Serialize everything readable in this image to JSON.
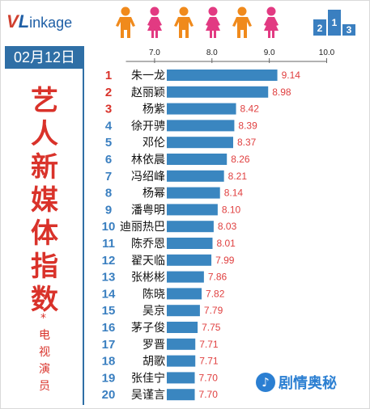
{
  "header": {
    "logo_v": "V",
    "logo_l": "L",
    "logo_rest": "inkage",
    "date": "02月12日",
    "podium_digits": [
      "2",
      "1",
      "3"
    ]
  },
  "left_panel": {
    "title_chars": [
      "艺",
      "人",
      "新",
      "媒",
      "体",
      "指",
      "数"
    ],
    "star": "*",
    "subtitle_chars": [
      "电",
      "视",
      "演",
      "员"
    ]
  },
  "watermark": {
    "icon_glyph": "♪",
    "text": "剧情奥秘"
  },
  "colors": {
    "bar": "#3a86c0",
    "value_text": "#e04040",
    "rank_top3": "#d9322a",
    "rank_other": "#3a7fc0",
    "person_orange": "#f08a1c",
    "person_pink": "#e23a82"
  },
  "chart_data": {
    "type": "bar",
    "orientation": "horizontal",
    "xlim": [
      6.5,
      10.0
    ],
    "x_ticks": [
      "7.0",
      "8.0",
      "9.0",
      "10.0"
    ],
    "x_tick_values": [
      7.0,
      8.0,
      9.0,
      10.0
    ],
    "ranks": [
      "1",
      "2",
      "3",
      "4",
      "5",
      "6",
      "7",
      "8",
      "9",
      "10",
      "11",
      "12",
      "13",
      "14",
      "15",
      "16",
      "17",
      "18",
      "19",
      "20"
    ],
    "categories": [
      "朱一龙",
      "赵丽颖",
      "杨紫",
      "徐开骋",
      "邓伦",
      "林依晨",
      "冯绍峰",
      "杨幂",
      "潘粤明",
      "迪丽热巴",
      "陈乔恩",
      "翟天临",
      "张彬彬",
      "陈晓",
      "吴京",
      "茅子俊",
      "罗晋",
      "胡歌",
      "张佳宁",
      "吴谨言"
    ],
    "values": [
      9.14,
      8.98,
      8.42,
      8.39,
      8.37,
      8.26,
      8.21,
      8.14,
      8.1,
      8.03,
      8.01,
      7.99,
      7.86,
      7.82,
      7.79,
      7.75,
      7.71,
      7.71,
      7.7,
      7.7
    ],
    "value_labels": [
      "9.14",
      "8.98",
      "8.42",
      "8.39",
      "8.37",
      "8.26",
      "8.21",
      "8.14",
      "8.10",
      "8.03",
      "8.01",
      "7.99",
      "7.86",
      "7.82",
      "7.79",
      "7.75",
      "7.71",
      "7.71",
      "7.70",
      "7.70"
    ]
  }
}
